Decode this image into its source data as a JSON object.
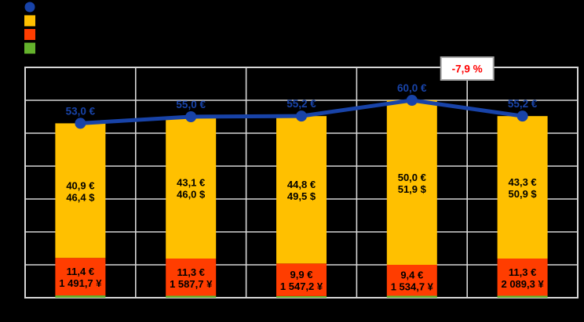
{
  "colors": {
    "background": "#000000",
    "grid": "#D6D6D6",
    "bar_label_text": "#000000",
    "line_blue": "#1843A8",
    "orange": "#FFC000",
    "red_orange": "#FF3D00",
    "green": "#64B22C",
    "annotation_red": "#FF0000",
    "annotation_fill": "#FFFFFF",
    "annotation_border": "#A6A6A6"
  },
  "legend": {
    "items": [
      {
        "shape": "circle",
        "color": "#1843A8",
        "label": ""
      },
      {
        "shape": "square",
        "color": "#FFC000",
        "label": ""
      },
      {
        "shape": "square",
        "color": "#FF3D00",
        "label": ""
      },
      {
        "shape": "square",
        "color": "#64B22C",
        "label": ""
      }
    ]
  },
  "chart_data": {
    "type": "bar",
    "subtype": "stacked-bars-with-total-line-overlay",
    "n_categories": 5,
    "categories": [
      "",
      "",
      "",
      "",
      ""
    ],
    "ylim": [
      0,
      70
    ],
    "grid_step": 10,
    "grid": "on",
    "legend_position": "top-left",
    "bar_segments": [
      {
        "name": "green-base-segment",
        "color": "#64B22C",
        "values": [
          0.7,
          0.6,
          0.5,
          0.6,
          0.6
        ],
        "labels": null
      },
      {
        "name": "red-middle-segment",
        "color": "#FF3D00",
        "values": [
          11.4,
          11.3,
          9.9,
          9.4,
          11.3
        ],
        "labels": [
          [
            "11,4 €",
            "1 491,7 ¥"
          ],
          [
            "11,3 €",
            "1 587,7 ¥"
          ],
          [
            "9,9 €",
            "1 547,2 ¥"
          ],
          [
            "9,4 €",
            "1 534,7 ¥"
          ],
          [
            "11,3 €",
            "2 089,3 ¥"
          ]
        ]
      },
      {
        "name": "orange-top-segment",
        "color": "#FFC000",
        "values": [
          40.9,
          43.1,
          44.8,
          50.0,
          43.3
        ],
        "labels": [
          [
            "40,9 €",
            "46,4 $"
          ],
          [
            "43,1 €",
            "46,0 $"
          ],
          [
            "44,8 €",
            "49,5 $"
          ],
          [
            "50,0 €",
            "51,9 $"
          ],
          [
            "43,3 €",
            "50,9 $"
          ]
        ]
      }
    ],
    "line_series": {
      "name": "total-line",
      "color": "#1843A8",
      "values": [
        53.0,
        55.0,
        55.2,
        60.0,
        55.2
      ],
      "labels": [
        "53,0 €",
        "55,0 €",
        "55,2 €",
        "60,0 €",
        "55,2 €"
      ]
    },
    "annotation": {
      "text": "-7,9 %",
      "text_color": "#FF0000",
      "fill": "#FFFFFF",
      "border_color": "#A6A6A6",
      "anchor_category_boundary": 4
    }
  }
}
